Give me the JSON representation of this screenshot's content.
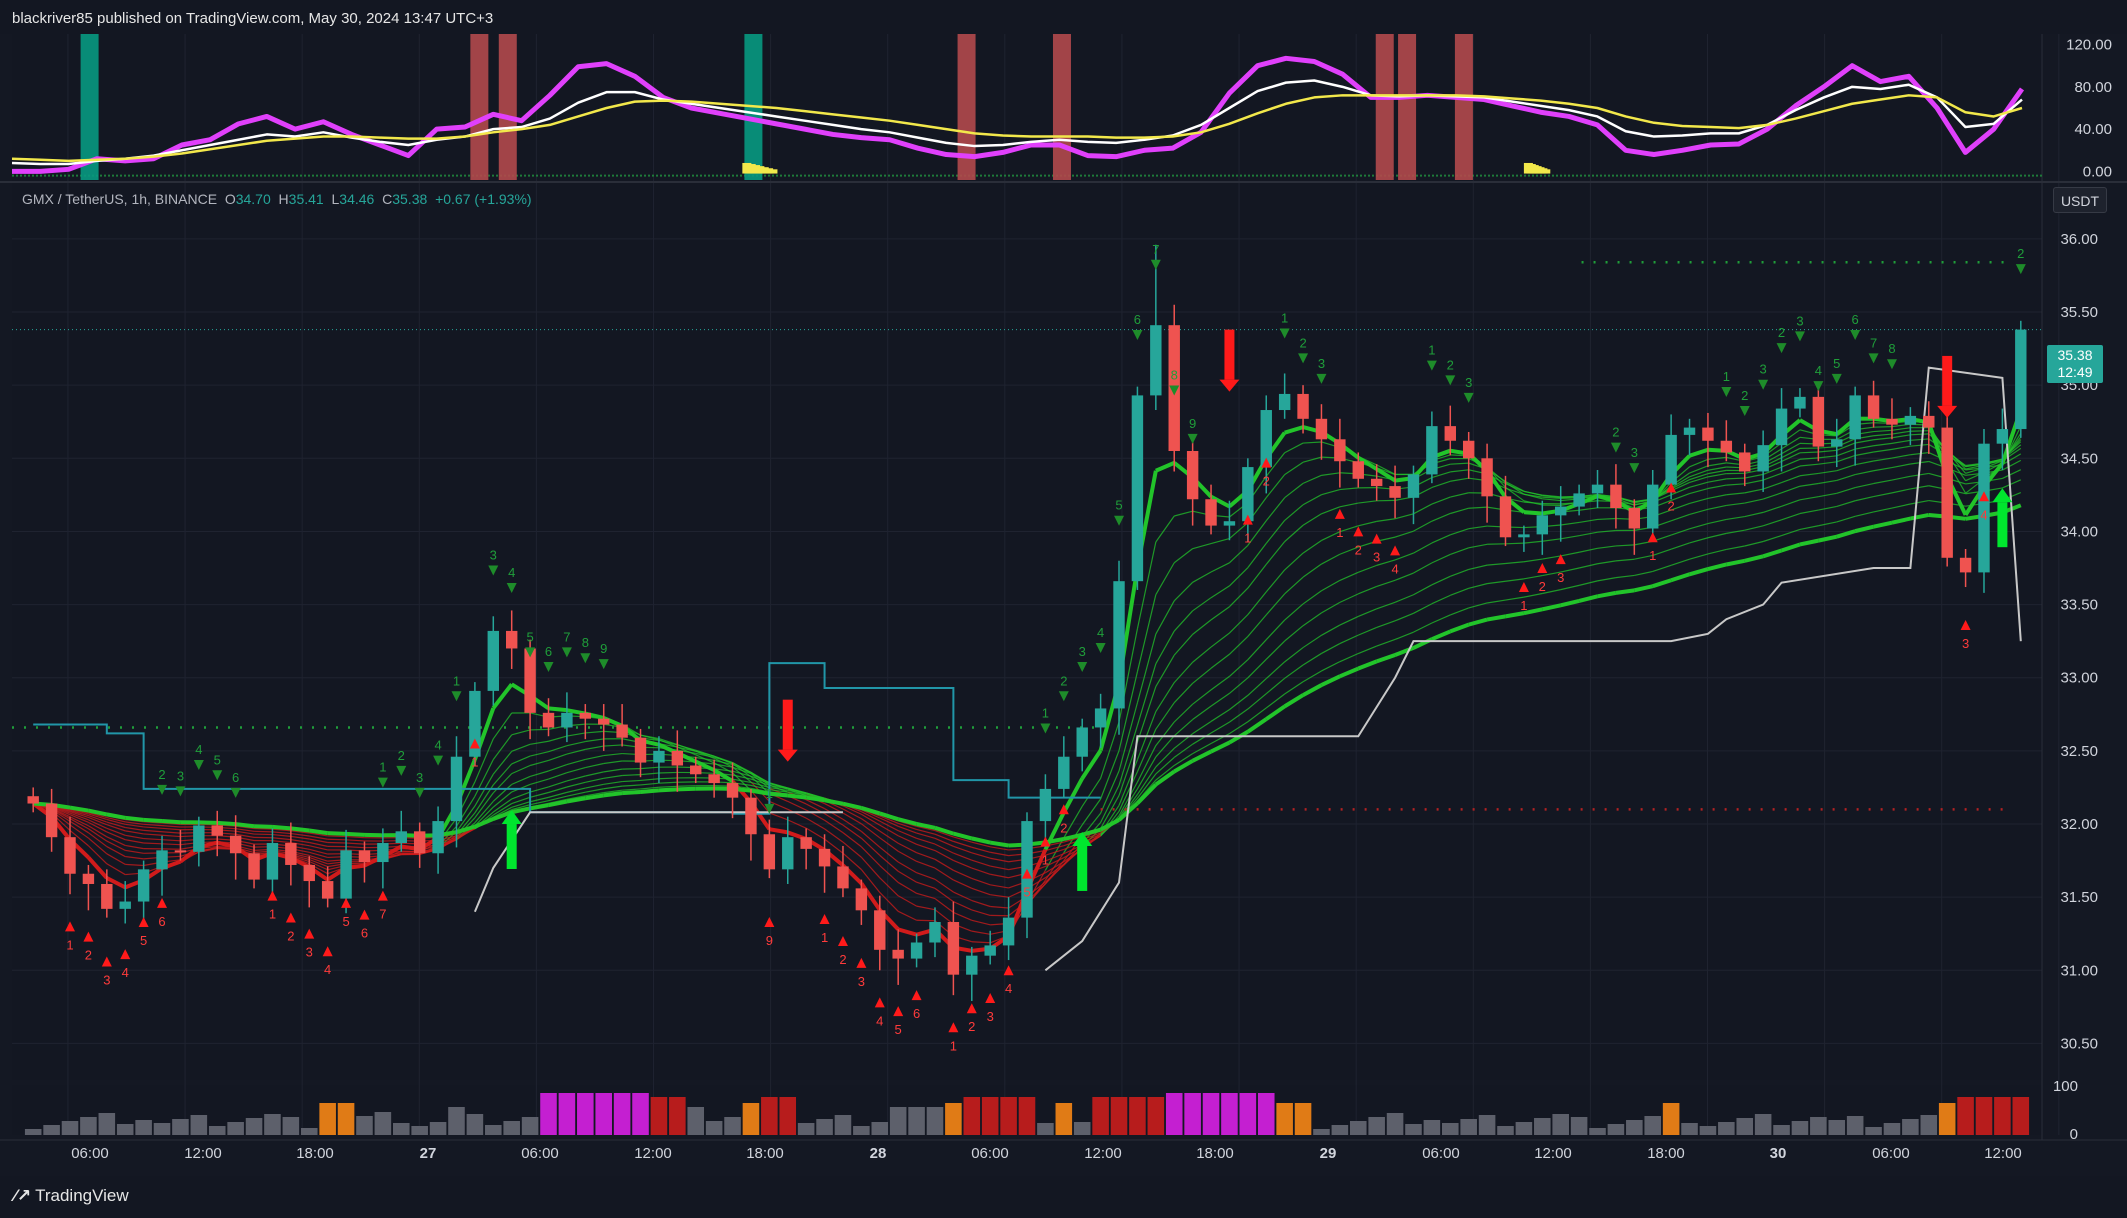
{
  "header": {
    "published_text": "blackriver85 published on TradingView.com, May 30, 2024 13:47 UTC+3"
  },
  "symbol": {
    "name": "GMX / TetherUS, 1h, BINANCE",
    "open_label": "O",
    "open": "34.70",
    "high_label": "H",
    "high": "35.41",
    "low_label": "L",
    "low": "34.46",
    "close_label": "C",
    "close": "35.38",
    "change": "+0.67 (+1.93%)"
  },
  "currency_button": "USDT",
  "price_tag": {
    "price": "35.38",
    "countdown": "12:49"
  },
  "footer": {
    "brand": "TradingView"
  },
  "colors": {
    "background": "#131722",
    "up": "#26a69a",
    "down": "#ef5350",
    "ribbon_green": "#22c42a",
    "ribbon_red": "#d11b1b",
    "oscillator_magenta": "#e040fb",
    "oscillator_white": "#ffffff",
    "oscillator_yellow": "#f2e84b",
    "stop_line": "#2196a8",
    "trail_line": "#c8c8c8",
    "volume_gray": "#5d606b",
    "volume_orange": "#e07b16",
    "volume_magenta": "#c41fd1",
    "volume_red": "#b71c1c"
  },
  "chart_data": [
    {
      "name_role": "oscillator",
      "type": "line",
      "y_ticks": [
        "120.00",
        "80.00",
        "40.00",
        "0.00"
      ],
      "ylim": [
        -10,
        130
      ],
      "series": [
        {
          "role": "fast",
          "color": "#e040fb",
          "values": [
            0,
            0,
            2,
            12,
            10,
            12,
            25,
            30,
            45,
            52,
            40,
            47,
            35,
            25,
            15,
            40,
            42,
            54,
            48,
            72,
            99,
            102,
            90,
            70,
            60,
            55,
            50,
            45,
            40,
            35,
            32,
            30,
            22,
            16,
            14,
            18,
            25,
            25,
            15,
            14,
            20,
            22,
            37,
            74,
            100,
            107,
            104,
            92,
            70,
            70,
            72,
            70,
            68,
            62,
            56,
            52,
            44,
            20,
            16,
            20,
            25,
            26,
            40,
            62,
            80,
            100,
            85,
            90,
            60,
            18,
            40,
            78
          ]
        },
        {
          "role": "mid",
          "color": "#ffffff",
          "values": [
            8,
            7,
            7,
            10,
            12,
            15,
            20,
            25,
            30,
            35,
            33,
            37,
            32,
            28,
            25,
            30,
            33,
            40,
            42,
            50,
            65,
            75,
            75,
            68,
            64,
            60,
            56,
            52,
            48,
            44,
            40,
            37,
            32,
            27,
            24,
            25,
            28,
            30,
            28,
            27,
            30,
            34,
            44,
            60,
            76,
            84,
            86,
            80,
            72,
            71,
            72,
            71,
            70,
            66,
            62,
            58,
            52,
            38,
            33,
            34,
            36,
            36,
            44,
            58,
            70,
            80,
            78,
            82,
            70,
            42,
            45,
            68
          ]
        },
        {
          "role": "slow",
          "color": "#f2e84b",
          "values": [
            12,
            11,
            10,
            11,
            12,
            14,
            17,
            21,
            25,
            29,
            31,
            33,
            33,
            32,
            31,
            31,
            33,
            37,
            40,
            44,
            52,
            60,
            66,
            67,
            66,
            64,
            62,
            60,
            57,
            54,
            51,
            48,
            44,
            40,
            36,
            34,
            33,
            33,
            33,
            32,
            32,
            33,
            37,
            45,
            55,
            64,
            70,
            72,
            72,
            72,
            72,
            72,
            71,
            69,
            67,
            64,
            60,
            52,
            46,
            43,
            42,
            41,
            44,
            50,
            57,
            64,
            68,
            72,
            70,
            56,
            52,
            60
          ]
        }
      ],
      "signal_bars": [
        {
          "color": "green",
          "value": 120
        },
        {
          "color": "red",
          "value": 120
        },
        {
          "color": "red",
          "value": 120
        },
        {
          "color": "green",
          "value": 120
        },
        {
          "color": "red",
          "value": 120
        },
        {
          "color": "red",
          "value": 120
        },
        {
          "color": "red",
          "value": 120
        },
        {
          "color": "red",
          "value": 120
        },
        {
          "color": "red",
          "value": 120
        }
      ]
    },
    {
      "name_role": "price",
      "type": "candlestick",
      "y_ticks": [
        "36.00",
        "35.50",
        "35.00",
        "34.50",
        "34.00",
        "33.50",
        "33.00",
        "32.50",
        "32.00",
        "31.50",
        "31.00",
        "30.50"
      ],
      "ylim": [
        30.25,
        36.3
      ],
      "x_ticks": [
        "06:00",
        "12:00",
        "18:00",
        "27",
        "06:00",
        "12:00",
        "18:00",
        "28",
        "06:00",
        "12:00",
        "18:00",
        "29",
        "06:00",
        "12:00",
        "18:00",
        "30",
        "06:00",
        "12:00"
      ],
      "closes": [
        32.14,
        31.91,
        31.66,
        31.59,
        31.42,
        31.47,
        31.69,
        31.82,
        31.81,
        31.99,
        31.92,
        31.8,
        31.62,
        31.87,
        31.72,
        31.61,
        31.49,
        31.82,
        31.74,
        31.87,
        31.95,
        31.8,
        32.02,
        32.46,
        32.91,
        33.32,
        33.2,
        32.76,
        32.66,
        32.76,
        32.72,
        32.68,
        32.59,
        32.42,
        32.5,
        32.4,
        32.34,
        32.28,
        32.18,
        31.93,
        31.69,
        31.91,
        31.83,
        31.71,
        31.56,
        31.41,
        31.14,
        31.08,
        31.19,
        31.33,
        30.97,
        31.1,
        31.17,
        31.36,
        32.02,
        32.24,
        32.46,
        32.66,
        32.79,
        33.66,
        34.93,
        35.41,
        34.55,
        34.22,
        34.04,
        34.07,
        34.44,
        34.83,
        34.94,
        34.77,
        34.63,
        34.48,
        34.36,
        34.31,
        34.23,
        34.39,
        34.72,
        34.62,
        34.5,
        34.24,
        33.96,
        33.98,
        34.11,
        34.17,
        34.26,
        34.32,
        34.16,
        34.02,
        34.32,
        34.66,
        34.71,
        34.62,
        34.54,
        34.41,
        34.59,
        34.84,
        34.92,
        34.58,
        34.63,
        34.93,
        34.77,
        34.73,
        34.79,
        34.71,
        33.82,
        33.72,
        34.6,
        34.7,
        35.38
      ],
      "trail_stop_level": 32.1,
      "resistance_level": 35.84,
      "support_level_1": 32.66,
      "support_level_2": 32.1
    },
    {
      "name_role": "volume",
      "type": "bar",
      "y_ticks": [
        "100",
        "0"
      ],
      "ylim": [
        0,
        100
      ]
    }
  ]
}
